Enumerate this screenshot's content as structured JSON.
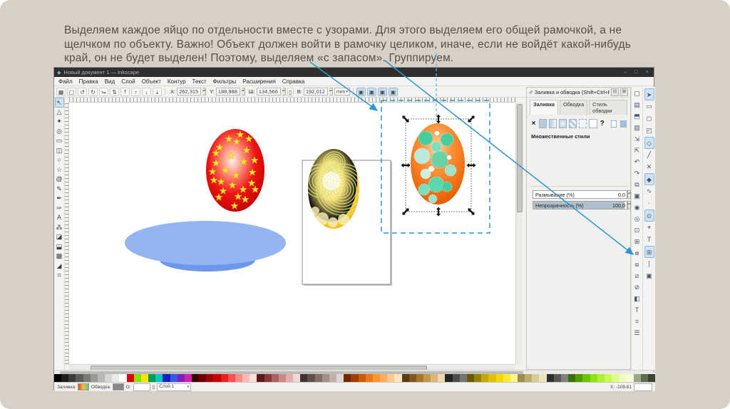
{
  "slide": {
    "text": "Выделяем каждое яйцо по отдельности вместе с узорами. Для этого выделяем его общей рамочкой, а не щелчком по объекту.  Важно! Объект должен войти в рамочку целиком, иначе, если не войдёт какой-нибудь край, он не будет выделен! Поэтому, выделяем «с запасом». Группируем."
  },
  "window": {
    "title": "Новый документ 1 — Inkscape",
    "window_buttons": [
      "–",
      "□",
      "×"
    ],
    "menu": [
      "Файл",
      "Правка",
      "Вид",
      "Слой",
      "Объект",
      "Контур",
      "Текст",
      "Фильтры",
      "Расширения",
      "Справка"
    ],
    "sel_toolbar": {
      "buttons_left": [
        {
          "name": "select-all-button",
          "glyph": "▦"
        },
        {
          "name": "deselect-button",
          "glyph": "▢"
        },
        {
          "name": "rotate-ccw-button",
          "glyph": "↺"
        },
        {
          "name": "rotate-cw-button",
          "glyph": "↻"
        },
        {
          "name": "flip-horizontal-button",
          "glyph": "⇋"
        },
        {
          "name": "flip-vertical-button",
          "glyph": "⇅"
        },
        {
          "name": "raise-to-top-button",
          "glyph": "⤒"
        },
        {
          "name": "raise-button",
          "glyph": "↑"
        },
        {
          "name": "lower-button",
          "glyph": "↓"
        },
        {
          "name": "lower-to-bottom-button",
          "glyph": "⤓"
        }
      ],
      "x_label": "X:",
      "x_value": "262,315",
      "y_label": "Y:",
      "y_value": "188,988",
      "w_label": "Ш:",
      "w_value": "134,566",
      "h_label": "В:",
      "h_value": "192,012",
      "unit": "mm",
      "affect_toggles": [
        {
          "name": "affect-stroke-toggle",
          "glyph": "▣"
        },
        {
          "name": "affect-corners-toggle",
          "glyph": "▣"
        },
        {
          "name": "affect-gradients-toggle",
          "glyph": "▣"
        },
        {
          "name": "affect-patterns-toggle",
          "glyph": "▣"
        }
      ]
    },
    "toolbox": [
      {
        "name": "tool-selector",
        "glyph": "↖",
        "active": true
      },
      {
        "name": "tool-node-editor",
        "glyph": "△"
      },
      {
        "name": "tool-tweak",
        "glyph": "✦"
      },
      {
        "name": "tool-zoom",
        "glyph": "◎"
      },
      {
        "name": "tool-rectangle",
        "glyph": "▭"
      },
      {
        "name": "tool-3dbox",
        "glyph": "◫"
      },
      {
        "name": "tool-ellipse",
        "glyph": "○"
      },
      {
        "name": "tool-star",
        "glyph": "☆"
      },
      {
        "name": "tool-spiral",
        "glyph": "@"
      },
      {
        "name": "tool-pencil",
        "glyph": "✎"
      },
      {
        "name": "tool-pen",
        "glyph": "✒"
      },
      {
        "name": "tool-calligraphy",
        "glyph": "✑"
      },
      {
        "name": "tool-text",
        "glyph": "А"
      },
      {
        "name": "tool-spray",
        "glyph": "⁂"
      },
      {
        "name": "tool-eraser",
        "glyph": "◪"
      },
      {
        "name": "tool-paint-bucket",
        "glyph": "⬓"
      },
      {
        "name": "tool-gradient",
        "glyph": "▩"
      },
      {
        "name": "tool-dropper",
        "glyph": "◢"
      },
      {
        "name": "tool-connector",
        "glyph": "⌗"
      }
    ],
    "commands": [
      {
        "name": "new-document-button",
        "glyph": "▢"
      },
      {
        "name": "open-button",
        "glyph": "▤"
      },
      {
        "name": "save-button",
        "glyph": "⬒"
      },
      {
        "name": "print-button",
        "glyph": "▥"
      },
      {
        "name": "import-button",
        "glyph": "⇲"
      },
      {
        "name": "export-button",
        "glyph": "⇱"
      },
      {
        "name": "undo-button",
        "glyph": "↶"
      },
      {
        "name": "redo-button",
        "glyph": "↷"
      },
      {
        "name": "copy-button",
        "glyph": "⧉"
      },
      {
        "name": "paste-button",
        "glyph": "▣"
      },
      {
        "name": "zoom-selection-button",
        "glyph": "◉"
      },
      {
        "name": "zoom-drawing-button",
        "glyph": "◎"
      },
      {
        "name": "zoom-page-button",
        "glyph": "⊡"
      },
      {
        "name": "duplicate-button",
        "glyph": "⊞"
      },
      {
        "name": "clone-button",
        "glyph": "⧇"
      },
      {
        "name": "group-button",
        "glyph": "⧈"
      },
      {
        "name": "ungroup-button",
        "glyph": "⧄"
      },
      {
        "name": "unlink-clone-button",
        "glyph": "⊘"
      },
      {
        "name": "fill-stroke-dialog-button",
        "glyph": "◧"
      },
      {
        "name": "text-dialog-button",
        "glyph": "T"
      },
      {
        "name": "xml-editor-button",
        "glyph": "⌗"
      },
      {
        "name": "align-dialog-button",
        "glyph": "☰"
      }
    ],
    "snapbar": [
      {
        "name": "snap-enable-toggle",
        "glyph": "➤",
        "active": true
      },
      {
        "name": "snap-bbox-toggle",
        "glyph": "▭"
      },
      {
        "name": "snap-bbox-edges-toggle",
        "glyph": "◻"
      },
      {
        "name": "snap-bbox-corners-toggle",
        "glyph": "◰"
      },
      {
        "name": "snap-nodes-toggle",
        "glyph": "◇",
        "active": true
      },
      {
        "name": "snap-paths-toggle",
        "glyph": "╱"
      },
      {
        "name": "snap-intersections-toggle",
        "glyph": "✕"
      },
      {
        "name": "snap-cusp-nodes-toggle",
        "glyph": "◆",
        "active": true
      },
      {
        "name": "snap-smooth-nodes-toggle",
        "glyph": "∿"
      },
      {
        "name": "snap-midpoints-toggle",
        "glyph": "∙"
      },
      {
        "name": "snap-object-centers-toggle",
        "glyph": "⊙",
        "active": true
      },
      {
        "name": "snap-rotation-center-toggle",
        "glyph": "⌖"
      },
      {
        "name": "snap-text-baseline-toggle",
        "glyph": "Т"
      },
      {
        "name": "snap-grid-toggle",
        "glyph": "⊞",
        "active": true
      },
      {
        "name": "snap-guides-toggle",
        "glyph": "∣"
      },
      {
        "name": "snap-page-border-toggle",
        "glyph": "▣"
      }
    ],
    "dock": {
      "title": "Заливка и обводка (Shift+Ctrl+F)",
      "minimize_glyph": "⊟",
      "close_glyph": "⊠",
      "tabs": [
        {
          "label": "Заливка",
          "active": true
        },
        {
          "label": "Обводка",
          "active": false
        },
        {
          "label": "Стиль обводки",
          "active": false
        }
      ],
      "help_glyph": "?",
      "styles_message": "Множественные стили",
      "blur_label": "Размывание (%)",
      "blur_value": "0,0",
      "opacity_label": "Непрозрачность (%)",
      "opacity_value": "100,0"
    },
    "statusbar": {
      "fill_label": "Заливка:",
      "stroke_label": "Обводка:",
      "opacity_label": "О:",
      "lock_glyph": "▯",
      "layer_value": "Слой 1",
      "coords": "Х: -109,61"
    },
    "palette": [
      "#000000",
      "#1f1f1f",
      "#3d3d3d",
      "#5c5c5c",
      "#7a7a7a",
      "#999999",
      "#b8b8b8",
      "#d6d6d6",
      "#ebebeb",
      "#ffffff",
      "#e00000",
      "#89e000",
      "#f5e600",
      "#00a050",
      "#00c8c8",
      "#1020c0",
      "#3858e8",
      "#8020c0",
      "#d020b0",
      "#400000",
      "#700000",
      "#a00000",
      "#c80000",
      "#e82020",
      "#ff5050",
      "#ff8a8a",
      "#ffb8b8",
      "#ffdcdc",
      "#5a1a1a",
      "#8a3a3a",
      "#b06060",
      "#cc8888",
      "#e0b0b0",
      "#f0d8d8",
      "#40342f",
      "#60504a",
      "#807068",
      "#a09088",
      "#c0b0a8",
      "#e0d5d0",
      "#702800",
      "#a04000",
      "#cc5c00",
      "#e87818",
      "#ff9430",
      "#ffaf5e",
      "#ffca8e",
      "#ffe4c4",
      "#5c3a14",
      "#80561e",
      "#a6752e",
      "#c69648",
      "#dcb878",
      "#eed9ae",
      "#262626",
      "#4d4d4d",
      "#737373",
      "#6b5800",
      "#998000",
      "#c7a800",
      "#e0c000",
      "#f5d800",
      "#ffe838",
      "#fff48c",
      "#9c8c52",
      "#bcac6e",
      "#d8cc94",
      "#ece4bc",
      "#303030",
      "#585858",
      "#808080",
      "#3c6e00",
      "#549a00",
      "#6cc600",
      "#8ce414",
      "#aef22e",
      "#c8fa55",
      "#ddff88",
      "#eeffbb",
      "#f4fadc",
      "#9aa888",
      "#5f6e52",
      "#39462f"
    ]
  },
  "annotation": {
    "arrow_color": "#2e96d3"
  }
}
